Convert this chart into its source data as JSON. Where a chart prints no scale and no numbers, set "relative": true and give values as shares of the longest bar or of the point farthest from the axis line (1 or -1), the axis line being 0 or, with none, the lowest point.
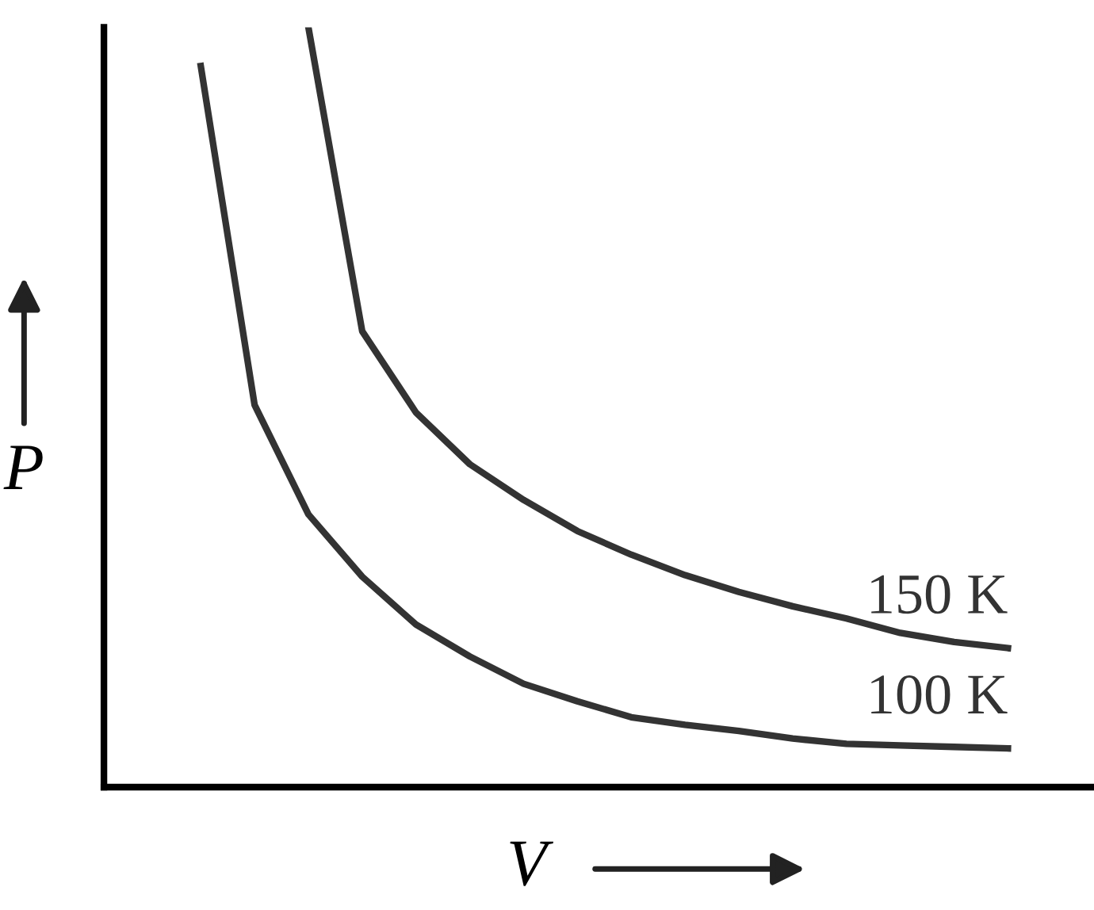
{
  "chart_data": {
    "type": "line",
    "relative": true,
    "xlabel": "V",
    "ylabel": "P",
    "legend": false,
    "grid": false,
    "tick_labels": false,
    "marker": "none",
    "line_style": "solid",
    "categories": [
      null,
      null,
      null,
      null,
      null,
      null,
      null,
      null,
      null,
      null,
      null,
      null,
      null,
      null,
      null,
      null
    ],
    "series": [
      {
        "name": "150 K",
        "color": "#333333",
        "values": [
          null,
          null,
          1.0,
          0.6,
          0.493,
          0.425,
          0.378,
          0.337,
          0.306,
          0.279,
          0.257,
          0.238,
          0.222,
          0.203,
          0.191,
          0.183
        ]
      },
      {
        "name": "100 K",
        "color": "#333333",
        "values": [
          0.949,
          0.503,
          0.359,
          0.277,
          0.214,
          0.172,
          0.136,
          0.113,
          0.092,
          0.082,
          0.074,
          0.064,
          0.057,
          0.055,
          0.053,
          0.051
        ]
      }
    ]
  }
}
